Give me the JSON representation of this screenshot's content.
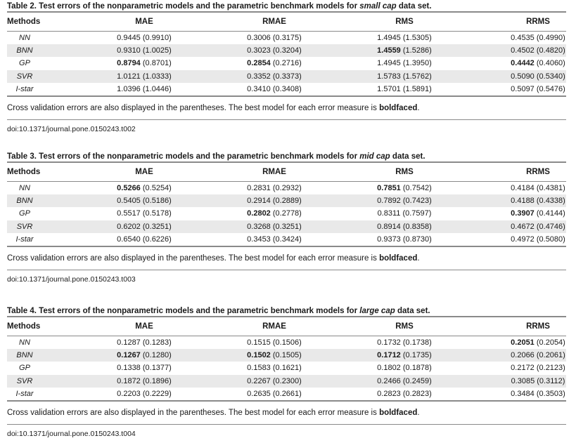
{
  "tables": [
    {
      "caption_prefix": "Table 2. Test errors of the nonparametric models and the parametric benchmark models for ",
      "caption_italic": "small cap",
      "caption_suffix": " data set.",
      "headers": [
        "Methods",
        "MAE",
        "RMAE",
        "RMS",
        "RRMS"
      ],
      "rows": [
        {
          "method": "NN",
          "cells": [
            [
              "",
              "0.9445 (0.9910)"
            ],
            [
              "",
              "0.3006 (0.3175)"
            ],
            [
              "",
              "1.4945 (1.5305)"
            ],
            [
              "",
              "0.4535 (0.4990)"
            ]
          ]
        },
        {
          "method": "BNN",
          "cells": [
            [
              "",
              "0.9310 (1.0025)"
            ],
            [
              "",
              "0.3023 (0.3204)"
            ],
            [
              "1.4559",
              " (1.5286)"
            ],
            [
              "",
              "0.4502 (0.4820)"
            ]
          ]
        },
        {
          "method": "GP",
          "cells": [
            [
              "0.8794",
              " (0.8701)"
            ],
            [
              "0.2854",
              " (0.2716)"
            ],
            [
              "",
              "1.4945 (1.3950)"
            ],
            [
              "0.4442",
              " (0.4060)"
            ]
          ]
        },
        {
          "method": "SVR",
          "cells": [
            [
              "",
              "1.0121 (1.0333)"
            ],
            [
              "",
              "0.3352 (0.3373)"
            ],
            [
              "",
              "1.5783 (1.5762)"
            ],
            [
              "",
              "0.5090 (0.5340)"
            ]
          ]
        },
        {
          "method": "I-star",
          "cells": [
            [
              "",
              "1.0396 (1.0446)"
            ],
            [
              "",
              "0.3410 (0.3408)"
            ],
            [
              "",
              "1.5701 (1.5891)"
            ],
            [
              "",
              "0.5097 (0.5476)"
            ]
          ]
        }
      ],
      "note_prefix": "Cross validation errors are also displayed in the parentheses. The best model for each error measure is ",
      "note_bold": "boldfaced",
      "note_suffix": ".",
      "doi": "doi:10.1371/journal.pone.0150243.t002"
    },
    {
      "caption_prefix": "Table 3. Test errors of the nonparametric models and the parametric benchmark models for ",
      "caption_italic": "mid cap",
      "caption_suffix": " data set.",
      "headers": [
        "Methods",
        "MAE",
        "RMAE",
        "RMS",
        "RRMS"
      ],
      "rows": [
        {
          "method": "NN",
          "cells": [
            [
              "0.5266",
              " (0.5254)"
            ],
            [
              "",
              "0.2831 (0.2932)"
            ],
            [
              "0.7851",
              " (0.7542)"
            ],
            [
              "",
              "0.4184 (0.4381)"
            ]
          ]
        },
        {
          "method": "BNN",
          "cells": [
            [
              "",
              "0.5405 (0.5186)"
            ],
            [
              "",
              "0.2914 (0.2889)"
            ],
            [
              "",
              "0.7892 (0.7423)"
            ],
            [
              "",
              "0.4188 (0.4338)"
            ]
          ]
        },
        {
          "method": "GP",
          "cells": [
            [
              "",
              "0.5517 (0.5178)"
            ],
            [
              "0.2802",
              " (0.2778)"
            ],
            [
              "",
              "0.8311 (0.7597)"
            ],
            [
              "0.3907",
              " (0.4144)"
            ]
          ]
        },
        {
          "method": "SVR",
          "cells": [
            [
              "",
              "0.6202 (0.3251)"
            ],
            [
              "",
              "0.3268 (0.3251)"
            ],
            [
              "",
              "0.8914 (0.8358)"
            ],
            [
              "",
              "0.4672 (0.4746)"
            ]
          ]
        },
        {
          "method": "I-star",
          "cells": [
            [
              "",
              "0.6540 (0.6226)"
            ],
            [
              "",
              "0.3453 (0.3424)"
            ],
            [
              "",
              "0.9373 (0.8730)"
            ],
            [
              "",
              "0.4972 (0.5080)"
            ]
          ]
        }
      ],
      "note_prefix": "Cross validation errors are also displayed in the parentheses. The best model for each error measure is ",
      "note_bold": "boldfaced",
      "note_suffix": ".",
      "doi": "doi:10.1371/journal.pone.0150243.t003"
    },
    {
      "caption_prefix": "Table 4. Test errors of the nonparametric models and the parametric benchmark models for ",
      "caption_italic": "large cap",
      "caption_suffix": " data set.",
      "headers": [
        "Methods",
        "MAE",
        "RMAE",
        "RMS",
        "RRMS"
      ],
      "rows": [
        {
          "method": "NN",
          "cells": [
            [
              "",
              "0.1287 (0.1283)"
            ],
            [
              "",
              "0.1515 (0.1506)"
            ],
            [
              "",
              "0.1732 (0.1738)"
            ],
            [
              "0.2051",
              " (0.2054)"
            ]
          ]
        },
        {
          "method": "BNN",
          "cells": [
            [
              "0.1267",
              " (0.1280)"
            ],
            [
              "0.1502",
              " (0.1505)"
            ],
            [
              "0.1712",
              " (0.1735)"
            ],
            [
              "",
              "0.2066 (0.2061)"
            ]
          ]
        },
        {
          "method": "GP",
          "cells": [
            [
              "",
              "0.1338 (0.1377)"
            ],
            [
              "",
              "0.1583 (0.1621)"
            ],
            [
              "",
              "0.1802 (0.1878)"
            ],
            [
              "",
              "0.2172 (0.2123)"
            ]
          ]
        },
        {
          "method": "SVR",
          "cells": [
            [
              "",
              "0.1872 (0.1896)"
            ],
            [
              "",
              "0.2267 (0.2300)"
            ],
            [
              "",
              "0.2466 (0.2459)"
            ],
            [
              "",
              "0.3085 (0.3112)"
            ]
          ]
        },
        {
          "method": "I-star",
          "cells": [
            [
              "",
              "0.2203 (0.2229)"
            ],
            [
              "",
              "0.2635 (0.2661)"
            ],
            [
              "",
              "0.2823 (0.2823)"
            ],
            [
              "",
              "0.3484 (0.3503)"
            ]
          ]
        }
      ],
      "note_prefix": "Cross validation errors are also displayed in the parentheses. The best model for each error measure is ",
      "note_bold": "boldfaced",
      "note_suffix": ".",
      "doi": "doi:10.1371/journal.pone.0150243.t004"
    }
  ]
}
